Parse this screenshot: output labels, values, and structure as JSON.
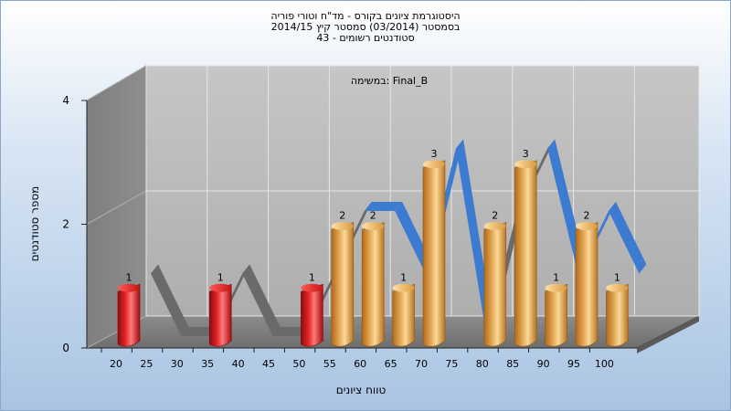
{
  "header": {
    "line1": "היסטוגרמת ציונים בקורס - מד\"ח וטורי פוריה",
    "line2": "בסמסטר  (03/2014)  סמסטר קיץ 2014/15",
    "line3": "סטודנטים רשומים - 43"
  },
  "chart_data": {
    "type": "bar",
    "title": "היסטוגרמת ציונים בקורס - מד\"ח וטורי פוריה",
    "subtitle": "במשימה: Final_B",
    "xlabel": "טווח ציונים",
    "ylabel": "מספר סטודנטים",
    "x_ticks": [
      "20",
      "25",
      "30",
      "35",
      "40",
      "45",
      "50",
      "55",
      "60",
      "65",
      "70",
      "75",
      "80",
      "85",
      "90",
      "95",
      "100"
    ],
    "categories": [
      "20",
      "25",
      "30",
      "35",
      "40",
      "45",
      "50",
      "55",
      "60",
      "65",
      "70",
      "75",
      "80",
      "85",
      "90",
      "95",
      "100"
    ],
    "values": [
      1,
      0,
      0,
      1,
      0,
      0,
      1,
      2,
      2,
      1,
      3,
      0,
      2,
      3,
      1,
      2,
      1
    ],
    "bar_colors": [
      "red",
      "none",
      "none",
      "red",
      "none",
      "none",
      "red",
      "gold",
      "gold",
      "gold",
      "gold",
      "none",
      "gold",
      "gold",
      "gold",
      "gold",
      "gold"
    ],
    "y_ticks": [
      0,
      2,
      4
    ],
    "ylim": [
      0,
      4
    ],
    "grid": true,
    "colors": {
      "fail": "#e3262b",
      "pass": "#e2a652",
      "ribbon_gray": "#6a6a6a",
      "ribbon_blue": "#3c7bd0"
    }
  }
}
